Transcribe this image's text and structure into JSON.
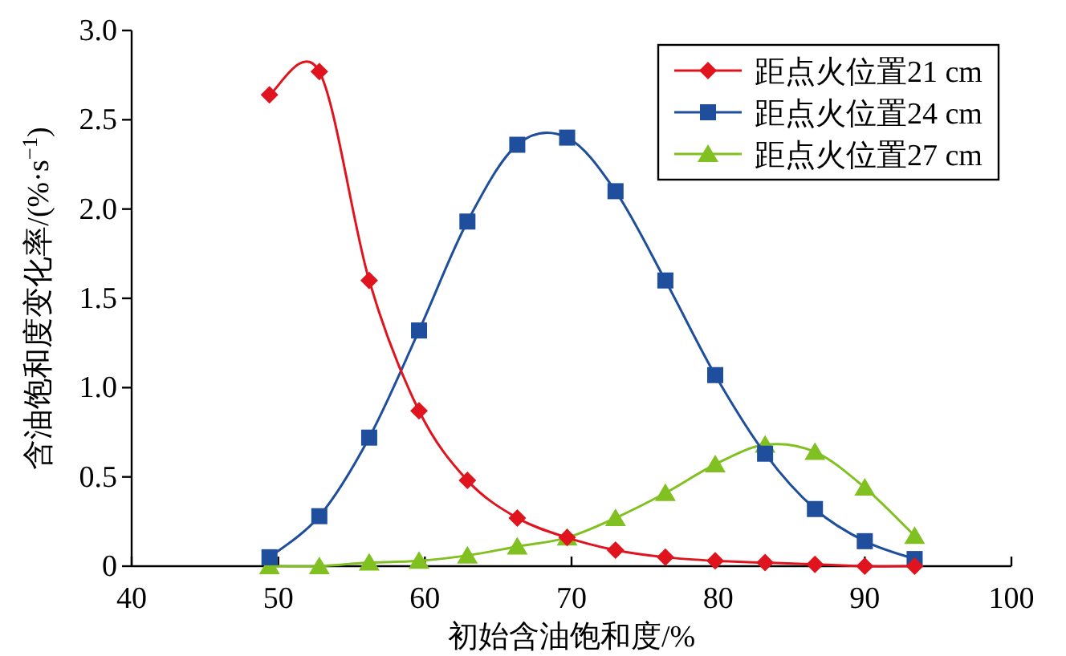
{
  "chart_data": {
    "type": "line",
    "xlabel": "初始含油饱和度/%",
    "ylabel": "含油饱和度变化率/(%·s$^{−1}$)",
    "xlim": [
      40,
      100
    ],
    "xticks": [
      40,
      50,
      60,
      70,
      80,
      90,
      100
    ],
    "ylim": [
      0,
      3.0
    ],
    "yticks": [
      0,
      {
        "value": 0.5,
        "label": "0.5"
      },
      {
        "value": 1,
        "label": "1.0"
      },
      {
        "value": 1.5,
        "label": "1.5"
      },
      {
        "value": 2,
        "label": "2.0"
      },
      {
        "value": 2.5,
        "label": "2.5"
      },
      {
        "value": 3,
        "label": "3.0"
      }
    ],
    "x": [
      49.4,
      52.8,
      56.2,
      59.6,
      62.9,
      66.3,
      69.7,
      73.0,
      76.4,
      79.8,
      83.2,
      86.6,
      90.0,
      93.4
    ],
    "grid": false,
    "legend": "top right",
    "line_style": "solid",
    "series": [
      {
        "name": "距点火位置21 cm",
        "color": "#e0141e",
        "marker": "diamond",
        "values": [
          2.64,
          2.77,
          1.6,
          0.87,
          0.48,
          0.27,
          0.16,
          0.09,
          0.05,
          0.03,
          0.02,
          0.01,
          0,
          0
        ]
      },
      {
        "name": "距点火位置24 cm",
        "color": "#1f4e9c",
        "marker": "square",
        "values": [
          0.05,
          0.28,
          0.72,
          1.32,
          1.93,
          2.36,
          2.4,
          2.1,
          1.6,
          1.07,
          0.63,
          0.32,
          0.14,
          0.04
        ]
      },
      {
        "name": "距点火位置27 cm",
        "color": "#80c020",
        "marker": "triangle",
        "values": [
          0,
          0,
          0.02,
          0.03,
          0.06,
          0.11,
          0.16,
          0.27,
          0.41,
          0.57,
          0.68,
          0.64,
          0.44,
          0.17
        ]
      }
    ]
  }
}
